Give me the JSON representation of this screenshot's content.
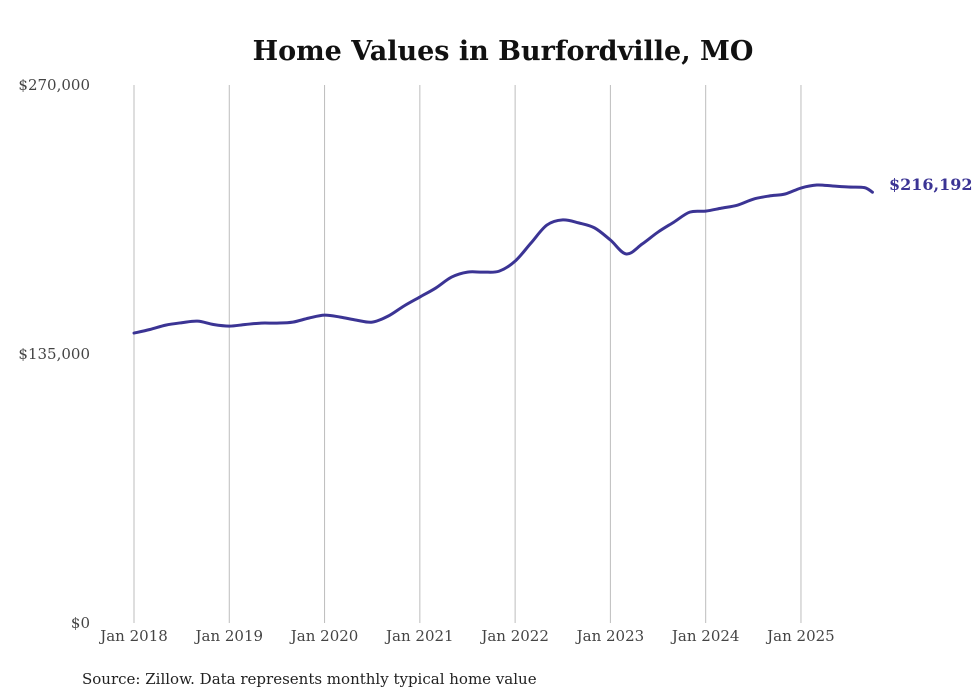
{
  "chart_data": {
    "type": "line",
    "title": "Home Values in Burfordville, MO",
    "xlabel": "",
    "ylabel": "",
    "ylim": [
      0,
      270000
    ],
    "y_ticks": [
      0,
      135000,
      270000
    ],
    "y_tick_labels": [
      "$0",
      "$135,000",
      "$270,000"
    ],
    "x_ticks": [
      "2018-01",
      "2019-01",
      "2020-01",
      "2021-01",
      "2022-01",
      "2023-01",
      "2024-01",
      "2025-01"
    ],
    "x_tick_labels": [
      "Jan 2018",
      "Jan 2019",
      "Jan 2020",
      "Jan 2021",
      "Jan 2022",
      "Jan 2023",
      "Jan 2024",
      "Jan 2025"
    ],
    "grid": "vertical",
    "line_color": "#3b3494",
    "end_label": "$216,192",
    "source": "Source: Zillow. Data represents monthly typical home value",
    "series": [
      {
        "name": "Typical home value",
        "x": [
          "2018-01",
          "2018-03",
          "2018-05",
          "2018-07",
          "2018-09",
          "2018-11",
          "2019-01",
          "2019-03",
          "2019-05",
          "2019-07",
          "2019-09",
          "2019-11",
          "2020-01",
          "2020-03",
          "2020-05",
          "2020-07",
          "2020-09",
          "2020-11",
          "2021-01",
          "2021-03",
          "2021-05",
          "2021-07",
          "2021-09",
          "2021-11",
          "2022-01",
          "2022-03",
          "2022-05",
          "2022-07",
          "2022-09",
          "2022-11",
          "2023-01",
          "2023-03",
          "2023-05",
          "2023-07",
          "2023-09",
          "2023-11",
          "2024-01",
          "2024-03",
          "2024-05",
          "2024-07",
          "2024-09",
          "2024-11",
          "2025-01",
          "2025-03",
          "2025-05",
          "2025-07",
          "2025-09",
          "2025-10"
        ],
        "values": [
          145500,
          147300,
          149500,
          150700,
          151500,
          149800,
          149000,
          149800,
          150500,
          150500,
          151000,
          153000,
          154500,
          153500,
          152000,
          151000,
          154000,
          159100,
          163600,
          168100,
          173600,
          176100,
          176100,
          176600,
          181600,
          190700,
          199700,
          202300,
          200800,
          198300,
          192200,
          185200,
          190200,
          196200,
          201200,
          206200,
          206700,
          208200,
          209700,
          212700,
          214300,
          215300,
          218300,
          219800,
          219300,
          218800,
          218500,
          216192
        ]
      }
    ]
  }
}
